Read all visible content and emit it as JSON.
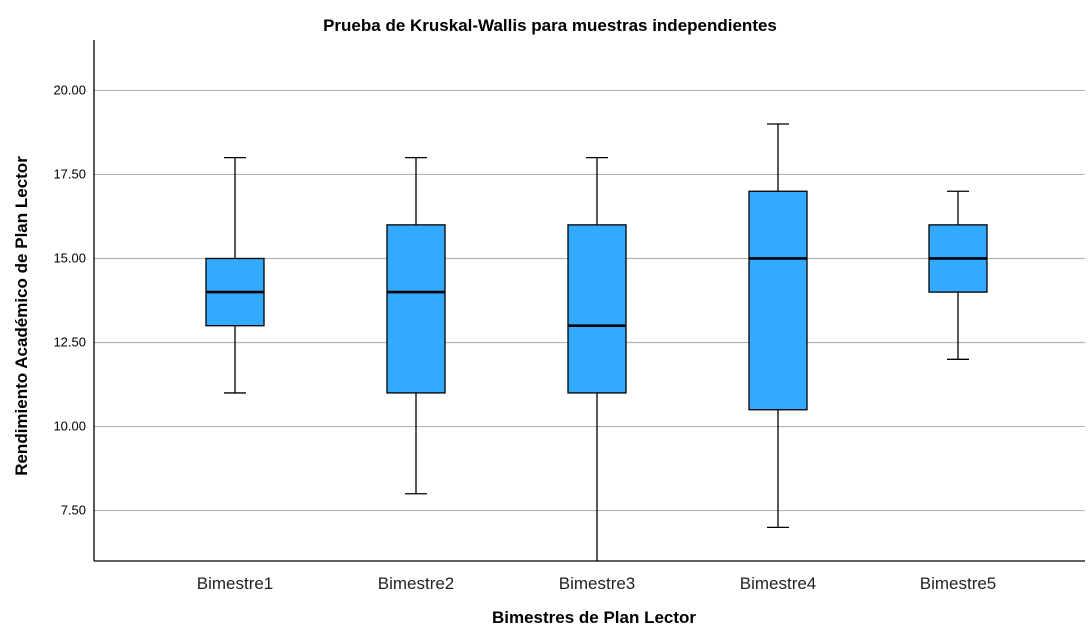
{
  "chart_data": {
    "type": "boxplot",
    "title": "Prueba de Kruskal-Wallis para muestras independientes",
    "xlabel": "Bimestres de Plan Lector",
    "ylabel": "Rendimiento Académico de Plan Lector",
    "ylim": [
      6.0,
      21.5
    ],
    "yticks": [
      "7.50",
      "10.00",
      "12.50",
      "15.00",
      "17.50",
      "20.00"
    ],
    "ytick_values": [
      7.5,
      10.0,
      12.5,
      15.0,
      17.5,
      20.0
    ],
    "grid": true,
    "box_color": "#33aaff",
    "categories": [
      "Bimestre1",
      "Bimestre2",
      "Bimestre3",
      "Bimestre4",
      "Bimestre5"
    ],
    "boxes": [
      {
        "category": "Bimestre1",
        "whisker_low": 11,
        "q1": 13,
        "median": 14,
        "q3": 15,
        "whisker_high": 18
      },
      {
        "category": "Bimestre2",
        "whisker_low": 8,
        "q1": 11,
        "median": 14,
        "q3": 16,
        "whisker_high": 18
      },
      {
        "category": "Bimestre3",
        "whisker_low": 6,
        "q1": 11,
        "median": 13,
        "q3": 16,
        "whisker_high": 18
      },
      {
        "category": "Bimestre4",
        "whisker_low": 7,
        "q1": 10.5,
        "median": 15,
        "q3": 17,
        "whisker_high": 19
      },
      {
        "category": "Bimestre5",
        "whisker_low": 12,
        "q1": 14,
        "median": 15,
        "q3": 16,
        "whisker_high": 17
      }
    ]
  }
}
